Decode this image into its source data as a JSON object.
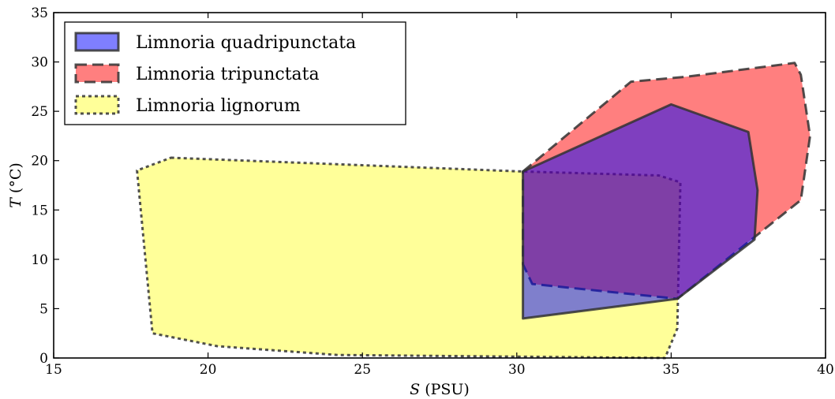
{
  "chart_data": {
    "type": "area",
    "title": "",
    "xlabel_italic": "S",
    "xlabel_rest": " (PSU)",
    "ylabel_italic": "T",
    "ylabel_rest": " (°C)",
    "xlim": [
      15,
      40
    ],
    "ylim": [
      0,
      35
    ],
    "xticks": [
      15,
      20,
      25,
      30,
      35,
      40
    ],
    "yticks": [
      0,
      5,
      10,
      15,
      20,
      25,
      30,
      35
    ],
    "grid": false,
    "legend_position": "top-left",
    "series": [
      {
        "name": "Limnoria lignorum",
        "fill": "#ffff00",
        "fill_opacity": 0.4,
        "edge": "#333333",
        "dash": "dotted",
        "points": [
          [
            18.8,
            20.3
          ],
          [
            30.2,
            18.9
          ],
          [
            34.6,
            18.5
          ],
          [
            35.3,
            17.8
          ],
          [
            35.2,
            3.0
          ],
          [
            34.8,
            0.0
          ],
          [
            24.2,
            0.3
          ],
          [
            20.3,
            1.2
          ],
          [
            18.2,
            2.5
          ],
          [
            17.7,
            19.0
          ]
        ]
      },
      {
        "name": "Limnoria tripunctata",
        "fill": "#ff0000",
        "fill_opacity": 0.5,
        "edge": "#333333",
        "dash": "dashed",
        "points": [
          [
            30.2,
            18.9
          ],
          [
            33.7,
            28.0
          ],
          [
            35.5,
            28.5
          ],
          [
            39.0,
            29.9
          ],
          [
            39.2,
            28.7
          ],
          [
            39.5,
            22.5
          ],
          [
            39.2,
            16.0
          ],
          [
            37.6,
            12.0
          ],
          [
            35.2,
            6.0
          ],
          [
            30.5,
            7.5
          ],
          [
            30.2,
            9.5
          ]
        ]
      },
      {
        "name": "Limnoria quadripunctata",
        "fill": "#0000ff",
        "fill_opacity": 0.5,
        "edge": "#333333",
        "dash": "solid",
        "points": [
          [
            30.2,
            18.9
          ],
          [
            35.0,
            25.7
          ],
          [
            37.5,
            22.9
          ],
          [
            37.8,
            17.0
          ],
          [
            37.7,
            12.0
          ],
          [
            35.2,
            6.0
          ],
          [
            30.2,
            4.0
          ]
        ]
      }
    ],
    "legend_order": [
      2,
      1,
      0
    ]
  }
}
